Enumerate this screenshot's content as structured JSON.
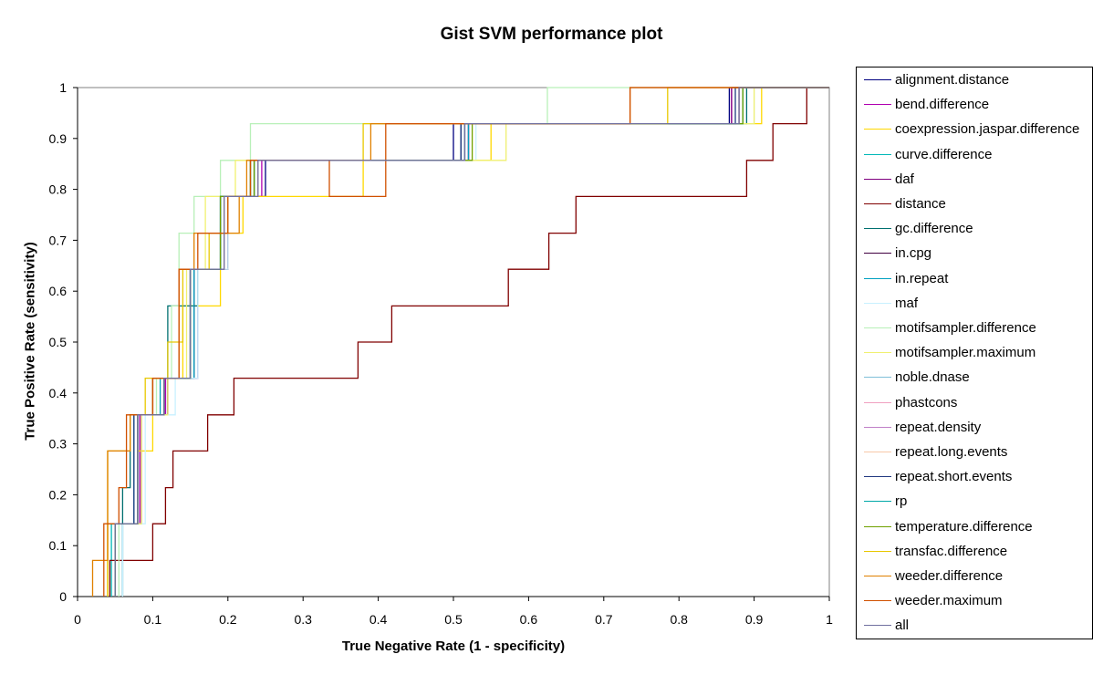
{
  "chart_data": {
    "type": "line",
    "title": "Gist SVM performance plot",
    "xlabel": "True Negative Rate (1 - specificity)",
    "ylabel": "True Positive Rate (sensitivity)",
    "xlim": [
      0,
      1
    ],
    "ylim": [
      0,
      1
    ],
    "xticks": [
      "0",
      "0.1",
      "0.2",
      "0.3",
      "0.4",
      "0.5",
      "0.6",
      "0.7",
      "0.8",
      "0.9",
      "1"
    ],
    "yticks": [
      "0",
      "0.1",
      "0.2",
      "0.3",
      "0.4",
      "0.5",
      "0.6",
      "0.7",
      "0.8",
      "0.9",
      "1"
    ],
    "grid": false,
    "legend_position": "right",
    "series": [
      {
        "name": "alignment.distance",
        "color": "#000080",
        "x": [
          0.05,
          0.05,
          0.083,
          0.083,
          0.117,
          0.117,
          0.15,
          0.15,
          0.2,
          0.2,
          0.25,
          0.25,
          0.5,
          0.5,
          0.867,
          0.867,
          0.97,
          0.97,
          1
        ],
        "y": [
          0,
          0.143,
          0.143,
          0.357,
          0.357,
          0.429,
          0.429,
          0.643,
          0.643,
          0.786,
          0.786,
          0.857,
          0.857,
          0.929,
          0.929,
          1,
          1,
          1,
          1
        ]
      },
      {
        "name": "bend.difference",
        "color": "#b000b0",
        "x": [
          0.05,
          0.05,
          0.083,
          0.083,
          0.117,
          0.117,
          0.15,
          0.15,
          0.2,
          0.2,
          0.245,
          0.245,
          0.51,
          0.51,
          0.87,
          0.87,
          1
        ],
        "y": [
          0,
          0.143,
          0.143,
          0.357,
          0.357,
          0.429,
          0.429,
          0.643,
          0.643,
          0.786,
          0.786,
          0.857,
          0.857,
          0.929,
          0.929,
          1,
          1
        ]
      },
      {
        "name": "coexpression.jaspar.difference",
        "color": "#ffd800",
        "x": [
          0.04,
          0.04,
          0.08,
          0.08,
          0.1,
          0.1,
          0.14,
          0.14,
          0.19,
          0.19,
          0.22,
          0.22,
          0.38,
          0.38,
          0.55,
          0.55,
          0.91,
          0.91,
          1
        ],
        "y": [
          0,
          0.143,
          0.143,
          0.286,
          0.286,
          0.429,
          0.429,
          0.571,
          0.571,
          0.714,
          0.714,
          0.786,
          0.786,
          0.857,
          0.857,
          0.929,
          0.929,
          1,
          1
        ]
      },
      {
        "name": "curve.difference",
        "color": "#00b8b8",
        "x": [
          0.045,
          0.045,
          0.075,
          0.075,
          0.115,
          0.115,
          0.15,
          0.15,
          0.195,
          0.195,
          0.23,
          0.23,
          0.515,
          0.515,
          0.885,
          0.885,
          1
        ],
        "y": [
          0,
          0.143,
          0.143,
          0.357,
          0.357,
          0.429,
          0.429,
          0.643,
          0.643,
          0.786,
          0.786,
          0.857,
          0.857,
          0.929,
          0.929,
          1,
          1
        ]
      },
      {
        "name": "daf",
        "color": "#800080",
        "x": [
          0.05,
          0.05,
          0.085,
          0.085,
          0.12,
          0.12,
          0.16,
          0.16,
          0.2,
          0.2,
          0.24,
          0.24,
          0.52,
          0.52,
          0.87,
          0.87,
          1
        ],
        "y": [
          0,
          0.143,
          0.143,
          0.357,
          0.357,
          0.429,
          0.429,
          0.643,
          0.643,
          0.786,
          0.786,
          0.857,
          0.857,
          0.929,
          0.929,
          1,
          1
        ]
      },
      {
        "name": "distance",
        "color": "#800000",
        "x": [
          0.043,
          0.043,
          0.057,
          0.057,
          0.1,
          0.1,
          0.117,
          0.117,
          0.127,
          0.127,
          0.173,
          0.173,
          0.208,
          0.208,
          0.373,
          0.373,
          0.418,
          0.418,
          0.573,
          0.573,
          0.627,
          0.627,
          0.663,
          0.663,
          0.89,
          0.89,
          0.925,
          0.925,
          0.97,
          0.97,
          1
        ],
        "y": [
          0,
          0.071,
          0.071,
          0.071,
          0.071,
          0.143,
          0.143,
          0.214,
          0.214,
          0.286,
          0.286,
          0.357,
          0.357,
          0.429,
          0.429,
          0.5,
          0.5,
          0.571,
          0.571,
          0.643,
          0.643,
          0.714,
          0.714,
          0.786,
          0.786,
          0.857,
          0.857,
          0.929,
          0.929,
          1,
          1
        ]
      },
      {
        "name": "gc.difference",
        "color": "#007070",
        "x": [
          0.06,
          0.06,
          0.07,
          0.07,
          0.1,
          0.1,
          0.12,
          0.12,
          0.16,
          0.16,
          0.19,
          0.19,
          0.23,
          0.23,
          0.51,
          0.51,
          0.89,
          0.89,
          1
        ],
        "y": [
          0,
          0.214,
          0.214,
          0.357,
          0.357,
          0.429,
          0.429,
          0.571,
          0.571,
          0.643,
          0.643,
          0.786,
          0.786,
          0.857,
          0.857,
          0.929,
          0.929,
          1,
          1
        ]
      },
      {
        "name": "in.cpg",
        "color": "#400040",
        "x": [
          0.05,
          0.05,
          0.08,
          0.08,
          0.12,
          0.12,
          0.155,
          0.155,
          0.2,
          0.2,
          0.24,
          0.24,
          0.52,
          0.52,
          0.88,
          0.88,
          1
        ],
        "y": [
          0,
          0.143,
          0.143,
          0.357,
          0.357,
          0.429,
          0.429,
          0.643,
          0.643,
          0.786,
          0.786,
          0.857,
          0.857,
          0.929,
          0.929,
          1,
          1
        ]
      },
      {
        "name": "in.repeat",
        "color": "#00a0c0",
        "x": [
          0.06,
          0.06,
          0.08,
          0.08,
          0.11,
          0.11,
          0.155,
          0.155,
          0.19,
          0.19,
          0.23,
          0.23,
          0.52,
          0.52,
          0.88,
          0.88,
          1
        ],
        "y": [
          0,
          0.143,
          0.143,
          0.357,
          0.357,
          0.429,
          0.429,
          0.643,
          0.643,
          0.786,
          0.786,
          0.857,
          0.857,
          0.929,
          0.929,
          1,
          1
        ]
      },
      {
        "name": "maf",
        "color": "#c8f0ff",
        "x": [
          0.06,
          0.06,
          0.09,
          0.09,
          0.13,
          0.13,
          0.16,
          0.16,
          0.2,
          0.2,
          0.24,
          0.24,
          0.53,
          0.53,
          0.9,
          0.9,
          1
        ],
        "y": [
          0,
          0.143,
          0.143,
          0.357,
          0.357,
          0.429,
          0.429,
          0.643,
          0.643,
          0.786,
          0.786,
          0.857,
          0.857,
          0.929,
          0.929,
          1,
          1
        ]
      },
      {
        "name": "motifsampler.difference",
        "color": "#b8f0b8",
        "x": [
          0.055,
          0.055,
          0.08,
          0.08,
          0.105,
          0.105,
          0.125,
          0.125,
          0.135,
          0.135,
          0.155,
          0.155,
          0.19,
          0.19,
          0.23,
          0.23,
          0.625,
          0.625,
          0.88,
          0.88,
          1
        ],
        "y": [
          0,
          0.143,
          0.143,
          0.357,
          0.357,
          0.429,
          0.429,
          0.571,
          0.571,
          0.714,
          0.714,
          0.786,
          0.786,
          0.857,
          0.857,
          0.929,
          0.929,
          1,
          1,
          1,
          1
        ]
      },
      {
        "name": "motifsampler.maximum",
        "color": "#f0f070",
        "x": [
          0.05,
          0.05,
          0.085,
          0.085,
          0.12,
          0.12,
          0.145,
          0.145,
          0.17,
          0.17,
          0.21,
          0.21,
          0.57,
          0.57,
          0.9,
          0.9,
          1
        ],
        "y": [
          0,
          0.143,
          0.143,
          0.357,
          0.357,
          0.429,
          0.429,
          0.643,
          0.643,
          0.786,
          0.786,
          0.857,
          0.857,
          0.929,
          0.929,
          1,
          1
        ]
      },
      {
        "name": "noble.dnase",
        "color": "#80c0d8",
        "x": [
          0.05,
          0.05,
          0.08,
          0.08,
          0.115,
          0.115,
          0.15,
          0.15,
          0.195,
          0.195,
          0.235,
          0.235,
          0.515,
          0.515,
          0.88,
          0.88,
          1
        ],
        "y": [
          0,
          0.143,
          0.143,
          0.357,
          0.357,
          0.429,
          0.429,
          0.643,
          0.643,
          0.786,
          0.786,
          0.857,
          0.857,
          0.929,
          0.929,
          1,
          1
        ]
      },
      {
        "name": "phastcons",
        "color": "#f0a0c0",
        "x": [
          0.05,
          0.05,
          0.08,
          0.08,
          0.115,
          0.115,
          0.15,
          0.15,
          0.195,
          0.195,
          0.24,
          0.24,
          0.515,
          0.515,
          0.88,
          0.88,
          1
        ],
        "y": [
          0,
          0.143,
          0.143,
          0.357,
          0.357,
          0.429,
          0.429,
          0.643,
          0.643,
          0.786,
          0.786,
          0.857,
          0.857,
          0.929,
          0.929,
          1,
          1
        ]
      },
      {
        "name": "repeat.density",
        "color": "#c080c8",
        "x": [
          0.05,
          0.05,
          0.08,
          0.08,
          0.115,
          0.115,
          0.15,
          0.15,
          0.195,
          0.195,
          0.24,
          0.24,
          0.515,
          0.515,
          0.88,
          0.88,
          1
        ],
        "y": [
          0,
          0.143,
          0.143,
          0.357,
          0.357,
          0.429,
          0.429,
          0.643,
          0.643,
          0.786,
          0.786,
          0.857,
          0.857,
          0.929,
          0.929,
          1,
          1
        ]
      },
      {
        "name": "repeat.long.events",
        "color": "#f8c8a8",
        "x": [
          0.05,
          0.05,
          0.08,
          0.08,
          0.115,
          0.115,
          0.15,
          0.15,
          0.195,
          0.195,
          0.24,
          0.24,
          0.515,
          0.515,
          0.88,
          0.88,
          1
        ],
        "y": [
          0,
          0.143,
          0.143,
          0.357,
          0.357,
          0.429,
          0.429,
          0.643,
          0.643,
          0.786,
          0.786,
          0.857,
          0.857,
          0.929,
          0.929,
          1,
          1
        ]
      },
      {
        "name": "repeat.short.events",
        "color": "#203880",
        "x": [
          0.05,
          0.05,
          0.075,
          0.075,
          0.115,
          0.115,
          0.15,
          0.15,
          0.19,
          0.19,
          0.235,
          0.235,
          0.51,
          0.51,
          0.875,
          0.875,
          1
        ],
        "y": [
          0,
          0.143,
          0.143,
          0.357,
          0.357,
          0.429,
          0.429,
          0.643,
          0.643,
          0.786,
          0.786,
          0.857,
          0.857,
          0.929,
          0.929,
          1,
          1
        ]
      },
      {
        "name": "rp",
        "color": "#00a8a8",
        "x": [
          0.05,
          0.05,
          0.08,
          0.08,
          0.115,
          0.115,
          0.15,
          0.15,
          0.19,
          0.19,
          0.235,
          0.235,
          0.515,
          0.515,
          0.885,
          0.885,
          1
        ],
        "y": [
          0,
          0.143,
          0.143,
          0.357,
          0.357,
          0.429,
          0.429,
          0.643,
          0.643,
          0.786,
          0.786,
          0.857,
          0.857,
          0.929,
          0.929,
          1,
          1
        ]
      },
      {
        "name": "temperature.difference",
        "color": "#70a000",
        "x": [
          0.05,
          0.05,
          0.08,
          0.08,
          0.115,
          0.115,
          0.15,
          0.15,
          0.19,
          0.19,
          0.235,
          0.235,
          0.525,
          0.525,
          0.885,
          0.885,
          1
        ],
        "y": [
          0,
          0.143,
          0.143,
          0.357,
          0.357,
          0.429,
          0.429,
          0.643,
          0.643,
          0.786,
          0.786,
          0.857,
          0.857,
          0.929,
          0.929,
          1,
          1
        ]
      },
      {
        "name": "transfac.difference",
        "color": "#e8c800",
        "x": [
          0.04,
          0.04,
          0.07,
          0.07,
          0.09,
          0.09,
          0.12,
          0.12,
          0.14,
          0.14,
          0.175,
          0.175,
          0.2,
          0.2,
          0.23,
          0.23,
          0.38,
          0.38,
          0.49,
          0.49,
          0.785,
          0.785,
          0.92,
          0.92,
          1
        ],
        "y": [
          0,
          0.286,
          0.286,
          0.357,
          0.357,
          0.429,
          0.429,
          0.5,
          0.5,
          0.643,
          0.643,
          0.714,
          0.714,
          0.786,
          0.786,
          0.857,
          0.857,
          0.929,
          0.929,
          0.929,
          0.929,
          1,
          1,
          1,
          1
        ]
      },
      {
        "name": "weeder.difference",
        "color": "#e08000",
        "x": [
          0.02,
          0.02,
          0.04,
          0.04,
          0.07,
          0.07,
          0.1,
          0.1,
          0.135,
          0.135,
          0.155,
          0.155,
          0.215,
          0.215,
          0.225,
          0.225,
          0.39,
          0.39,
          0.735,
          0.735,
          0.87,
          0.87,
          1
        ],
        "y": [
          0,
          0.071,
          0.071,
          0.286,
          0.286,
          0.357,
          0.357,
          0.429,
          0.429,
          0.643,
          0.643,
          0.714,
          0.714,
          0.786,
          0.786,
          0.857,
          0.857,
          0.929,
          0.929,
          1,
          1,
          1,
          1
        ]
      },
      {
        "name": "weeder.maximum",
        "color": "#d05000",
        "x": [
          0.035,
          0.035,
          0.055,
          0.055,
          0.065,
          0.065,
          0.1,
          0.1,
          0.135,
          0.135,
          0.16,
          0.16,
          0.2,
          0.2,
          0.23,
          0.23,
          0.335,
          0.335,
          0.41,
          0.41,
          0.735,
          0.735,
          0.865,
          0.865,
          1
        ],
        "y": [
          0,
          0.143,
          0.143,
          0.214,
          0.214,
          0.357,
          0.357,
          0.429,
          0.429,
          0.643,
          0.643,
          0.714,
          0.714,
          0.786,
          0.786,
          0.857,
          0.857,
          0.786,
          0.786,
          0.929,
          0.929,
          1,
          1,
          1,
          1
        ]
      },
      {
        "name": "all",
        "color": "#7070a0",
        "x": [
          0.05,
          0.05,
          0.08,
          0.08,
          0.115,
          0.115,
          0.15,
          0.15,
          0.195,
          0.195,
          0.24,
          0.24,
          0.515,
          0.515,
          0.88,
          0.88,
          1
        ],
        "y": [
          0,
          0.143,
          0.143,
          0.357,
          0.357,
          0.429,
          0.429,
          0.643,
          0.643,
          0.786,
          0.786,
          0.857,
          0.857,
          0.929,
          0.929,
          1,
          1
        ]
      }
    ]
  }
}
